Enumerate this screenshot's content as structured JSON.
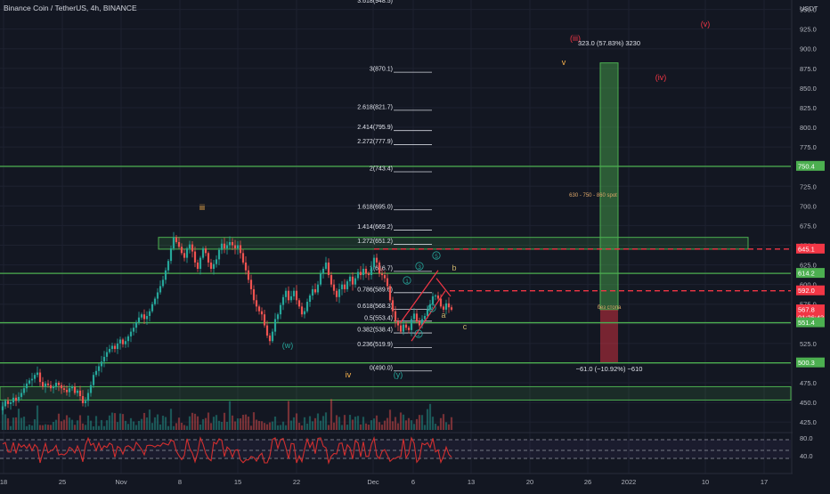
{
  "header": {
    "symbol_title": "Binance Coin / TetherUS, 4h, BINANCE"
  },
  "colors": {
    "background": "#131722",
    "grid": "#1e2230",
    "axis_text": "#b2b5be",
    "up_candle": "#26a69a",
    "down_candle": "#ef5350",
    "level_line": "#4caf50",
    "red_dash": "#f23645",
    "wave_orange": "#ffb74d",
    "wave_red": "#f23645",
    "wave_teal": "#26a69a",
    "wave_yellow": "#c8b16a",
    "rsi_line": "#d32f2f"
  },
  "chart_data": {
    "type": "candlestick",
    "symbol": "Binance Coin / TetherUS, 4h, BINANCE",
    "price_axis": {
      "unit_label": "USDT",
      "ticks": [
        "425.0",
        "450.0",
        "475.0",
        "500.0",
        "525.0",
        "550.0",
        "575.0",
        "600.0",
        "625.0",
        "650.0",
        "675.0",
        "700.0",
        "725.0",
        "750.0",
        "775.0",
        "800.0",
        "825.0",
        "850.0",
        "875.0",
        "900.0",
        "925.0",
        "950.0"
      ],
      "range": [
        415,
        962
      ]
    },
    "time_axis": {
      "ticks": [
        "18",
        "25",
        "Nov",
        "8",
        "15",
        "22",
        "Dec",
        "6",
        "13",
        "20",
        "26",
        "2022",
        "10",
        "17"
      ]
    },
    "price_labels": [
      {
        "value": "750.4",
        "kind": "green_line"
      },
      {
        "value": "645.1",
        "kind": "red_dash"
      },
      {
        "value": "614.2",
        "kind": "green_line"
      },
      {
        "value": "592.0",
        "kind": "red_dash"
      },
      {
        "value": "567.8",
        "kind": "current_price"
      },
      {
        "value": "01:26:43",
        "kind": "countdown"
      },
      {
        "value": "551.4",
        "kind": "green_line"
      },
      {
        "value": "500.3",
        "kind": "green_line"
      }
    ],
    "horizontal_levels": [
      750.4,
      645.1,
      614.2,
      592.0,
      551.4,
      500.3
    ],
    "fib_levels": [
      {
        "label": "3(870.1)",
        "value": 870.1
      },
      {
        "label": "2.618(821.7)",
        "value": 821.7
      },
      {
        "label": "2.414(795.9)",
        "value": 795.9
      },
      {
        "label": "2.272(777.9)",
        "value": 777.9
      },
      {
        "label": "2(743.4)",
        "value": 743.4
      },
      {
        "label": "1.618(695.0)",
        "value": 695.0
      },
      {
        "label": "1.414(669.2)",
        "value": 669.2
      },
      {
        "label": "1.272(651.2)",
        "value": 651.2
      },
      {
        "label": "1(616.7)",
        "value": 616.7
      },
      {
        "label": "0.786(589.6)",
        "value": 589.6
      },
      {
        "label": "0.618(568.3)",
        "value": 568.3
      },
      {
        "label": "0.5(553.4)",
        "value": 553.4
      },
      {
        "label": "0.382(538.4)",
        "value": 538.4
      },
      {
        "label": "0.236(519.9)",
        "value": 519.9
      },
      {
        "label": "0(490.0)",
        "value": 490.0
      }
    ],
    "fib_top_partial": "3.618(948.5)",
    "wave_labels": [
      {
        "text": "iii",
        "color": "orange"
      },
      {
        "text": "(iii)",
        "color": "red"
      },
      {
        "text": "(iv)",
        "color": "red"
      },
      {
        "text": "(v)",
        "color": "red"
      },
      {
        "text": "v",
        "color": "orange"
      },
      {
        "text": "iv",
        "color": "orange"
      },
      {
        "text": "(w)",
        "color": "teal"
      },
      {
        "text": "(y)",
        "color": "teal"
      },
      {
        "text": "b",
        "color": "yellow"
      },
      {
        "text": "a",
        "color": "yellow"
      },
      {
        "text": "c",
        "color": "yellow"
      },
      {
        "text": "1",
        "color": "teal"
      },
      {
        "text": "2",
        "color": "teal"
      },
      {
        "text": "3",
        "color": "teal"
      },
      {
        "text": "4",
        "color": "teal"
      },
      {
        "text": "5",
        "color": "teal"
      }
    ],
    "annotations": {
      "long_target": "323.0 (57.83%) 3230",
      "short_target": "−61.0 (−10.92%) −610",
      "zone_note": "630 - 750 - 860 spot",
      "stop_note": "без стопа"
    },
    "candles_close_path": [
      [
        0,
        440
      ],
      [
        3,
        445
      ],
      [
        6,
        452
      ],
      [
        9,
        448
      ],
      [
        12,
        450
      ],
      [
        15,
        456
      ],
      [
        18,
        452
      ],
      [
        21,
        457
      ],
      [
        24,
        462
      ],
      [
        27,
        468
      ],
      [
        30,
        474
      ],
      [
        33,
        478
      ],
      [
        36,
        480
      ],
      [
        39,
        485
      ],
      [
        42,
        488
      ],
      [
        45,
        476
      ],
      [
        48,
        470
      ],
      [
        51,
        474
      ],
      [
        54,
        472
      ],
      [
        57,
        468
      ],
      [
        60,
        470
      ],
      [
        63,
        475
      ],
      [
        66,
        472
      ],
      [
        69,
        468
      ],
      [
        72,
        466
      ],
      [
        75,
        463
      ],
      [
        78,
        468
      ],
      [
        81,
        470
      ],
      [
        84,
        462
      ],
      [
        87,
        465
      ],
      [
        90,
        458
      ],
      [
        93,
        449
      ],
      [
        96,
        452
      ],
      [
        99,
        462
      ],
      [
        102,
        472
      ],
      [
        105,
        485
      ],
      [
        108,
        490
      ],
      [
        111,
        496
      ],
      [
        114,
        502
      ],
      [
        117,
        508
      ],
      [
        120,
        514
      ],
      [
        123,
        518
      ],
      [
        126,
        522
      ],
      [
        129,
        518
      ],
      [
        132,
        525
      ],
      [
        135,
        530
      ],
      [
        138,
        524
      ],
      [
        141,
        528
      ],
      [
        144,
        534
      ],
      [
        147,
        540
      ],
      [
        150,
        545
      ],
      [
        153,
        552
      ],
      [
        156,
        558
      ],
      [
        159,
        562
      ],
      [
        162,
        556
      ],
      [
        165,
        560
      ],
      [
        168,
        566
      ],
      [
        171,
        575
      ],
      [
        174,
        582
      ],
      [
        177,
        590
      ],
      [
        180,
        598
      ],
      [
        183,
        606
      ],
      [
        186,
        618
      ],
      [
        189,
        630
      ],
      [
        192,
        646
      ],
      [
        195,
        660
      ],
      [
        198,
        654
      ],
      [
        201,
        648
      ],
      [
        204,
        640
      ],
      [
        207,
        634
      ],
      [
        210,
        646
      ],
      [
        213,
        651
      ],
      [
        216,
        642
      ],
      [
        219,
        628
      ],
      [
        222,
        620
      ],
      [
        225,
        634
      ],
      [
        228,
        646
      ],
      [
        231,
        640
      ],
      [
        234,
        628
      ],
      [
        237,
        620
      ],
      [
        240,
        626
      ],
      [
        243,
        632
      ],
      [
        246,
        644
      ],
      [
        249,
        652
      ],
      [
        252,
        646
      ],
      [
        255,
        650
      ],
      [
        258,
        654
      ],
      [
        261,
        650
      ],
      [
        264,
        646
      ],
      [
        267,
        650
      ],
      [
        270,
        640
      ],
      [
        273,
        628
      ],
      [
        276,
        618
      ],
      [
        279,
        606
      ],
      [
        282,
        594
      ],
      [
        285,
        580
      ],
      [
        288,
        572
      ],
      [
        291,
        566
      ],
      [
        294,
        562
      ],
      [
        297,
        548
      ],
      [
        300,
        535
      ],
      [
        303,
        528
      ],
      [
        306,
        540
      ],
      [
        309,
        556
      ],
      [
        312,
        562
      ],
      [
        315,
        574
      ],
      [
        318,
        584
      ],
      [
        321,
        592
      ],
      [
        324,
        580
      ],
      [
        327,
        585
      ],
      [
        330,
        592
      ],
      [
        333,
        580
      ],
      [
        336,
        572
      ],
      [
        339,
        562
      ],
      [
        342,
        566
      ],
      [
        345,
        578
      ],
      [
        348,
        586
      ],
      [
        351,
        594
      ],
      [
        354,
        590
      ],
      [
        357,
        600
      ],
      [
        360,
        614
      ],
      [
        363,
        620
      ],
      [
        366,
        628
      ],
      [
        369,
        612
      ],
      [
        372,
        600
      ],
      [
        375,
        592
      ],
      [
        378,
        584
      ],
      [
        381,
        594
      ],
      [
        384,
        600
      ],
      [
        387,
        594
      ],
      [
        390,
        604
      ],
      [
        393,
        610
      ],
      [
        396,
        600
      ],
      [
        399,
        608
      ],
      [
        402,
        616
      ],
      [
        405,
        612
      ],
      [
        408,
        620
      ],
      [
        411,
        614
      ],
      [
        414,
        612
      ],
      [
        417,
        622
      ],
      [
        420,
        634
      ],
      [
        423,
        628
      ],
      [
        426,
        614
      ],
      [
        429,
        612
      ],
      [
        432,
        608
      ],
      [
        435,
        598
      ],
      [
        438,
        580
      ],
      [
        441,
        566
      ],
      [
        444,
        553
      ],
      [
        447,
        548
      ],
      [
        450,
        540
      ],
      [
        453,
        549
      ],
      [
        456,
        545
      ],
      [
        459,
        542
      ],
      [
        462,
        556
      ],
      [
        465,
        563
      ],
      [
        468,
        553
      ],
      [
        471,
        548
      ],
      [
        474,
        556
      ],
      [
        477,
        560
      ],
      [
        480,
        568
      ],
      [
        483,
        575
      ],
      [
        486,
        585
      ],
      [
        489,
        586
      ],
      [
        492,
        582
      ],
      [
        495,
        572
      ],
      [
        498,
        568
      ],
      [
        501,
        576
      ],
      [
        504,
        571
      ],
      [
        507,
        568
      ]
    ],
    "rsi": {
      "label_high": "80.0",
      "label_low": "40.0"
    }
  }
}
